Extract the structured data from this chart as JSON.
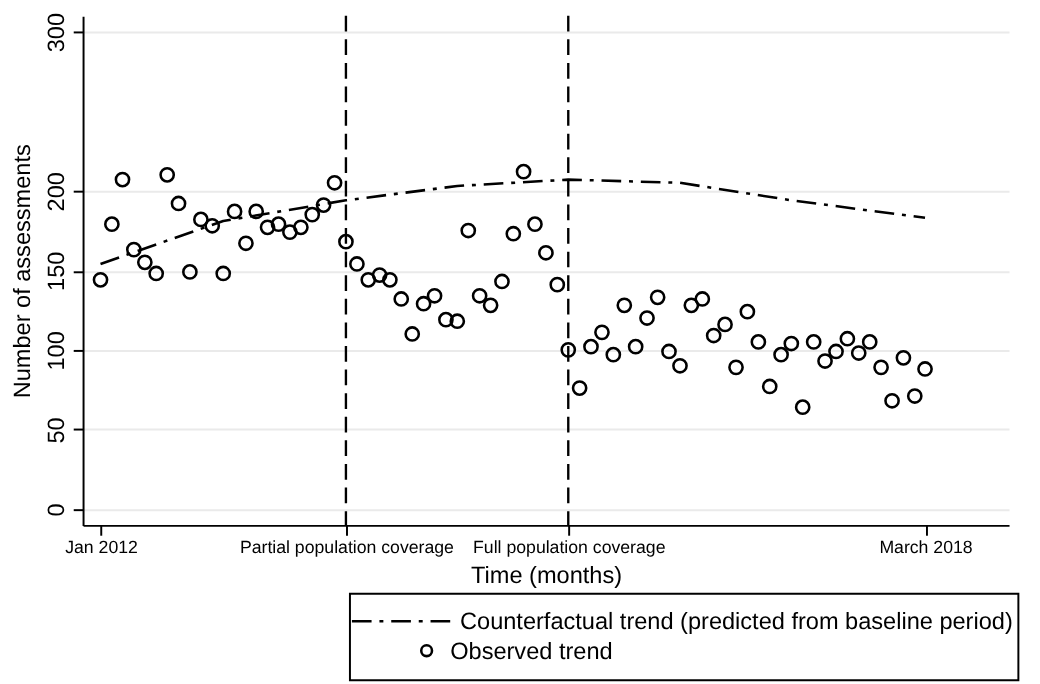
{
  "chart_data": {
    "type": "scatter",
    "xlabel": "Time (months)",
    "ylabel": "Number of assessments",
    "xlim": [
      "2011-11-13",
      "2018-10-15"
    ],
    "ylim": [
      -10,
      310
    ],
    "xticks": [
      {
        "value": "2012-01",
        "label": "Jan 2012"
      },
      {
        "value": "2013-11",
        "label": "Partial population coverage"
      },
      {
        "value": "2015-07",
        "label": "Full population coverage"
      },
      {
        "value": "2018-03",
        "label": "March 2018"
      }
    ],
    "yticks": [
      0,
      50,
      100,
      150,
      200,
      300
    ],
    "grid": "y",
    "legend": "bottom",
    "marker": "circle",
    "ref_lines": [
      {
        "axis": "x",
        "value": "2013-11",
        "label": null,
        "color": "#000000",
        "line_style": "dashed"
      },
      {
        "axis": "x",
        "value": "2015-07",
        "label": null,
        "color": "#000000",
        "line_style": "dashed"
      }
    ],
    "series": [
      {
        "name": "Counterfactual trend (predicted from baseline period)",
        "type": "line",
        "line_style": "dashed",
        "marker": "none",
        "color": "#000000",
        "x": [
          "2012-01",
          "2012-12",
          "2013-11",
          "2014-09",
          "2015-07",
          "2016-05",
          "2017-03",
          "2018-03"
        ],
        "values": [
          154,
          181,
          194,
          203,
          207,
          205,
          194,
          183
        ]
      },
      {
        "name": "Observed trend",
        "color": "#000000",
        "x": [
          "2012-01",
          "2012-02",
          "2012-03",
          "2012-04",
          "2012-05",
          "2012-06",
          "2012-07",
          "2012-08",
          "2012-09",
          "2012-10",
          "2012-11",
          "2012-12",
          "2013-01",
          "2013-02",
          "2013-03",
          "2013-04",
          "2013-05",
          "2013-06",
          "2013-07",
          "2013-08",
          "2013-09",
          "2013-10",
          "2013-11",
          "2013-12",
          "2014-01",
          "2014-02",
          "2014-03",
          "2014-04",
          "2014-05",
          "2014-06",
          "2014-07",
          "2014-08",
          "2014-09",
          "2014-10",
          "2014-11",
          "2014-12",
          "2015-01",
          "2015-02",
          "2015-03",
          "2015-04",
          "2015-05",
          "2015-06",
          "2015-07",
          "2015-08",
          "2015-09",
          "2015-10",
          "2015-11",
          "2015-12",
          "2016-01",
          "2016-02",
          "2016-03",
          "2016-04",
          "2016-05",
          "2016-06",
          "2016-07",
          "2016-08",
          "2016-09",
          "2016-10",
          "2016-11",
          "2016-12",
          "2017-01",
          "2017-02",
          "2017-03",
          "2017-04",
          "2017-05",
          "2017-06",
          "2017-07",
          "2017-08",
          "2017-09",
          "2017-10",
          "2017-11",
          "2017-12",
          "2018-01",
          "2018-02",
          "2018-03"
        ],
        "values": [
          144,
          179,
          207,
          163,
          155,
          148,
          210,
          192,
          149,
          182,
          178,
          148,
          187,
          167,
          187,
          177,
          179,
          174,
          177,
          185,
          191,
          205,
          168,
          154,
          144,
          147,
          144,
          132,
          110,
          129,
          134,
          119,
          118,
          175,
          134,
          128,
          143,
          173,
          212,
          179,
          161,
          141,
          100,
          76,
          102,
          111,
          97,
          128,
          102,
          120,
          133,
          99,
          90,
          128,
          132,
          109,
          116,
          89,
          124,
          105,
          77,
          97,
          104,
          64,
          105,
          93,
          99,
          107,
          98,
          105,
          89,
          68,
          95,
          71,
          88
        ]
      }
    ]
  }
}
